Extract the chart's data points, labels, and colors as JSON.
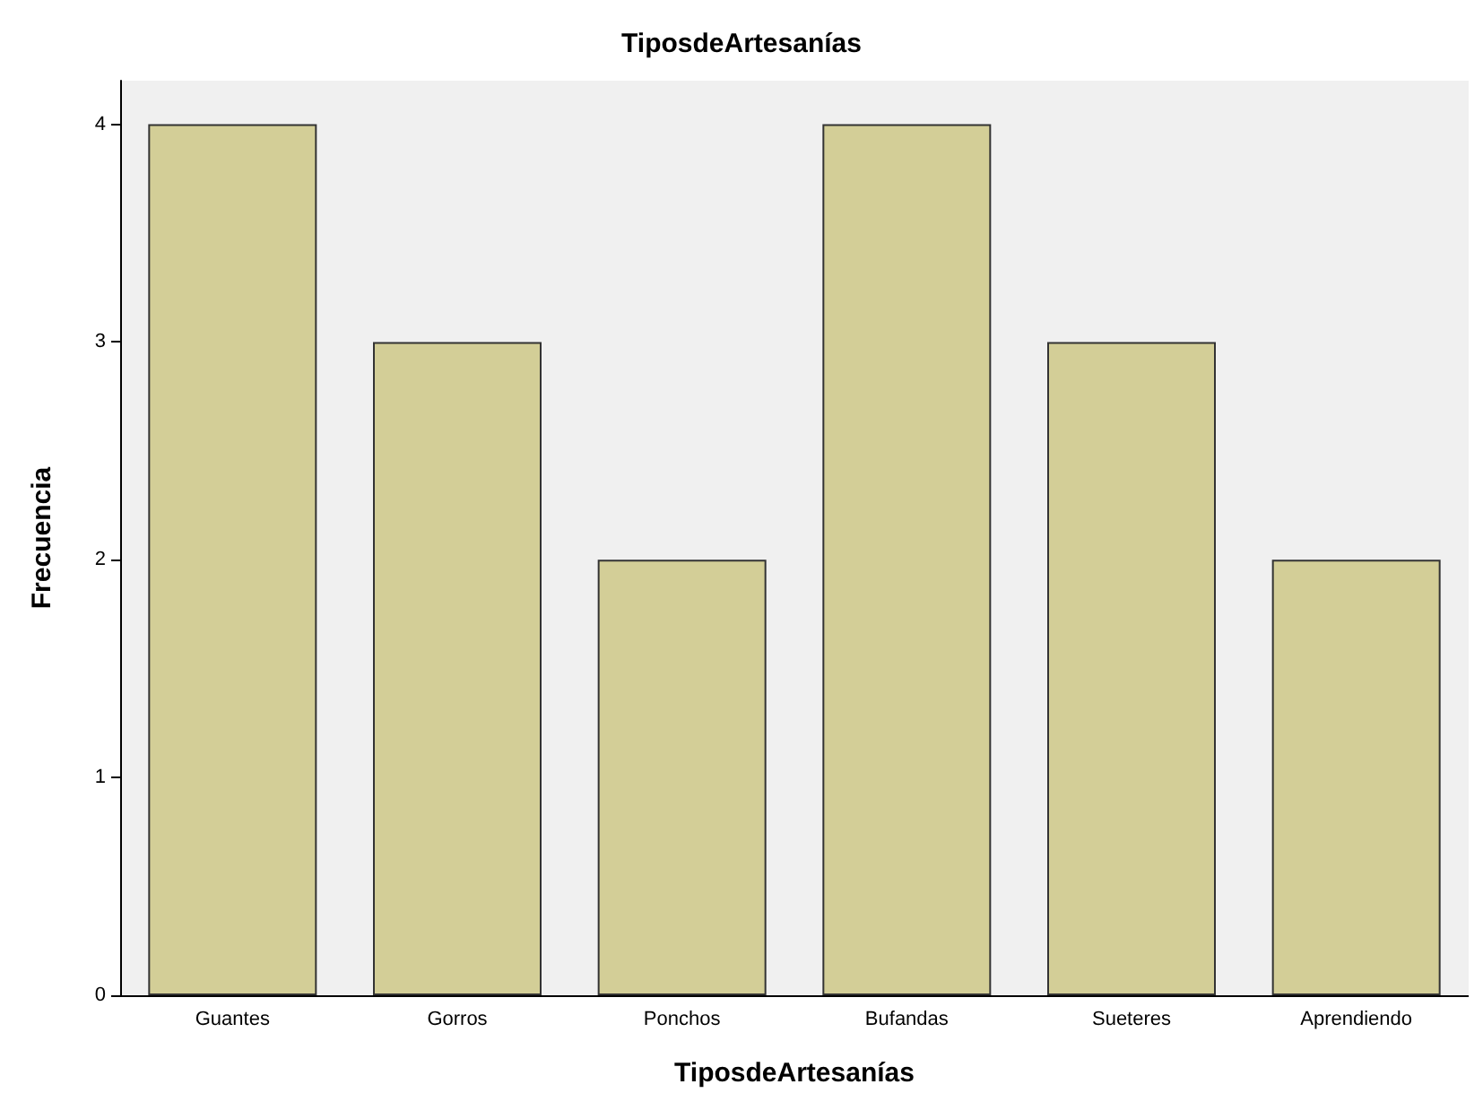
{
  "chart_data": {
    "type": "bar",
    "title": "TiposdeArtesanías",
    "xlabel": "TiposdeArtesanías",
    "ylabel": "Frecuencia",
    "categories": [
      "Guantes",
      "Gorros",
      "Ponchos",
      "Bufandas",
      "Sueteres",
      "Aprendiendo"
    ],
    "values": [
      4,
      3,
      2,
      4,
      3,
      2
    ],
    "color": "#d3ce97",
    "ylim": [
      0,
      4.2
    ],
    "yticks": [
      0,
      1,
      2,
      3,
      4
    ],
    "grid": false
  }
}
